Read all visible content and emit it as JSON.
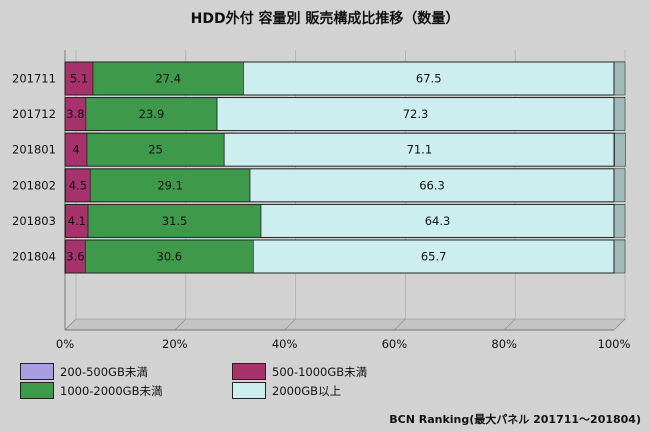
{
  "title": "HDD外付 容量別 販売構成比推移（数量）",
  "credit": "BCN Ranking(最大パネル 201711～201804)",
  "colors": {
    "s1": "#a89ee0",
    "s2": "#a8326c",
    "s3": "#3e9a4a",
    "s4": "#cdeeee"
  },
  "chart_data": {
    "type": "bar",
    "orientation": "horizontal",
    "stacked": true,
    "categories": [
      "201711",
      "201712",
      "201801",
      "201802",
      "201803",
      "201804"
    ],
    "series": [
      {
        "name": "200-500GB未満",
        "values": [
          0,
          0,
          0,
          0.1,
          0.1,
          0.1
        ],
        "labels": [
          "",
          "",
          "",
          "",
          "",
          ""
        ]
      },
      {
        "name": "500-1000GB未満",
        "values": [
          5.1,
          3.8,
          4,
          4.5,
          4.1,
          3.6
        ],
        "labels": [
          "5.1",
          "3.8",
          "4",
          "4.5",
          "4.1",
          "3.6"
        ]
      },
      {
        "name": "1000-2000GB未満",
        "values": [
          27.4,
          23.9,
          25,
          29.1,
          31.5,
          30.6
        ],
        "labels": [
          "27.4",
          "23.9",
          "25",
          "29.1",
          "31.5",
          "30.6"
        ]
      },
      {
        "name": "2000GB以上",
        "values": [
          67.5,
          72.3,
          71.1,
          66.3,
          64.3,
          65.7
        ],
        "labels": [
          "67.5",
          "72.3",
          "71.1",
          "66.3",
          "64.3",
          "65.7"
        ]
      }
    ],
    "xaxis": {
      "ticks": [
        0,
        20,
        40,
        60,
        80,
        100
      ],
      "tick_labels": [
        "0%",
        "20%",
        "40%",
        "60%",
        "80%",
        "100%"
      ],
      "range": [
        0,
        100
      ]
    },
    "grid": true,
    "legend": "bottom"
  }
}
